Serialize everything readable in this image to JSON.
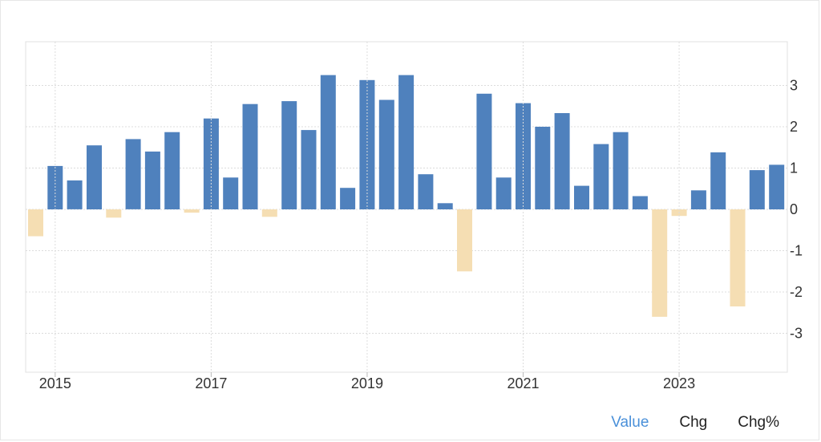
{
  "chart_data": {
    "type": "bar",
    "x_tick_labels": [
      "2015",
      "2017",
      "2019",
      "2021",
      "2023"
    ],
    "y_ticks": [
      -3,
      -2,
      -1,
      0,
      1,
      2,
      3
    ],
    "ylim": [
      -4,
      4
    ],
    "grid": true,
    "colors": {
      "positive": "#4f81bd",
      "negative": "#f5deb3"
    },
    "values": [
      -0.65,
      1.05,
      0.7,
      1.55,
      -0.2,
      1.7,
      1.4,
      1.87,
      -0.08,
      2.2,
      0.77,
      2.55,
      -0.18,
      2.62,
      1.92,
      3.25,
      0.52,
      3.13,
      2.65,
      3.25,
      0.85,
      0.15,
      -1.5,
      2.8,
      0.77,
      2.57,
      2.0,
      2.33,
      0.57,
      1.58,
      1.87,
      0.32,
      -2.6,
      -0.16,
      0.46,
      1.38,
      -2.35,
      0.95,
      1.08
    ]
  },
  "tabs": [
    {
      "label": "Value",
      "active": true
    },
    {
      "label": "Chg",
      "active": false
    },
    {
      "label": "Chg%",
      "active": false
    }
  ]
}
